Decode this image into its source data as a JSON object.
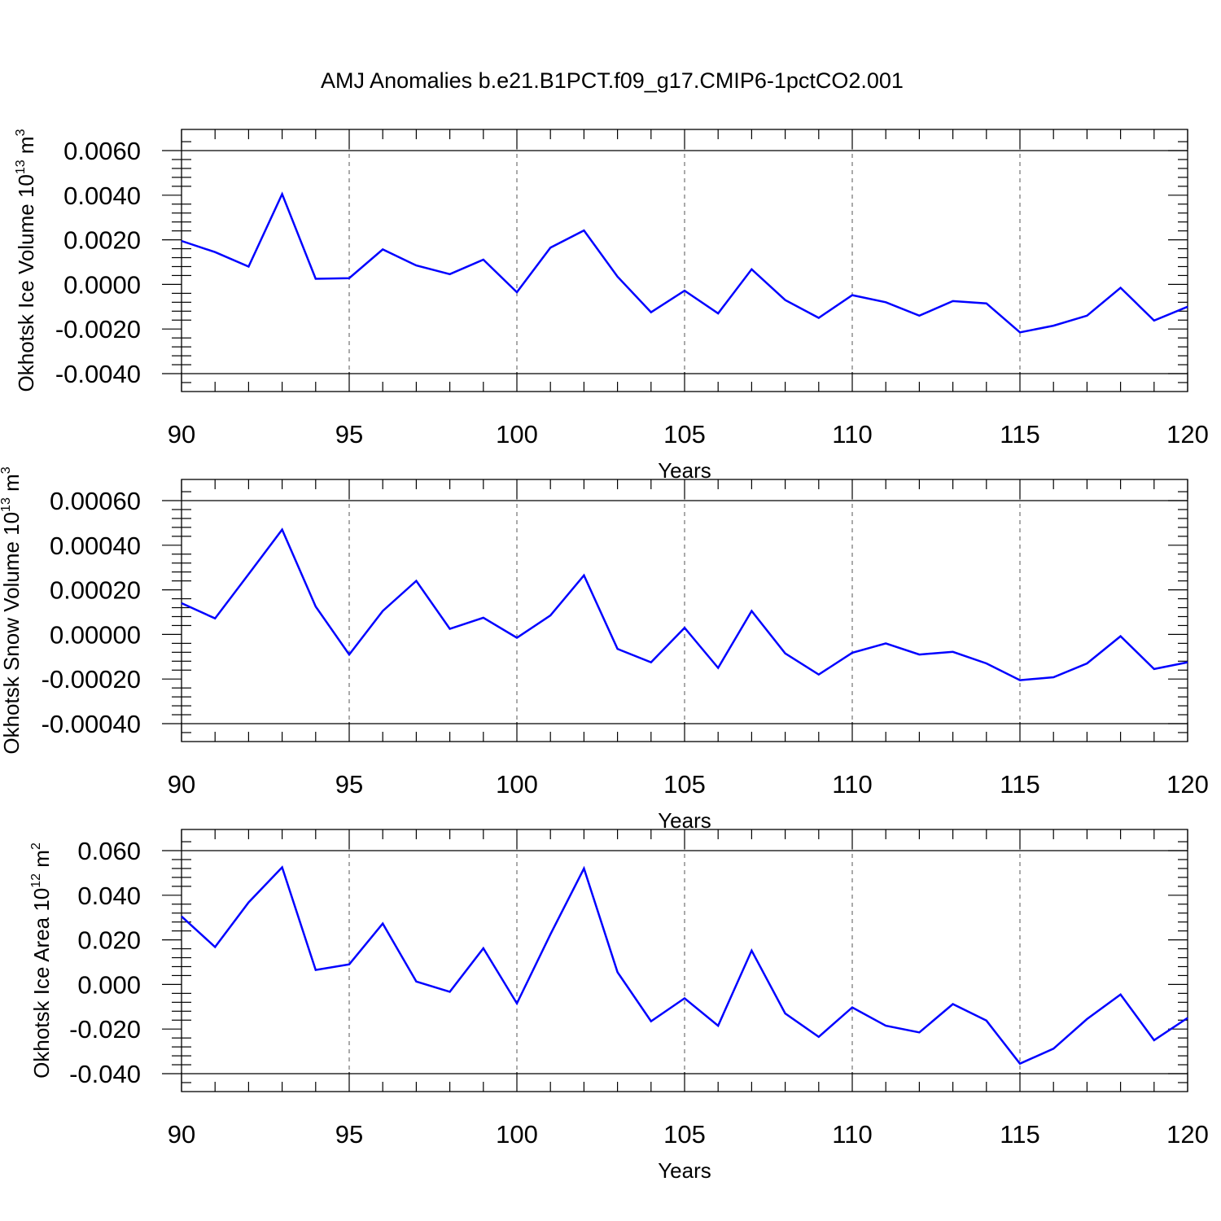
{
  "title": "AMJ Anomalies b.e21.B1PCT.f09_g17.CMIP6-1pctCO2.001",
  "line_color": "#0000ff",
  "chart_data": [
    {
      "type": "line",
      "title": "AMJ Anomalies b.e21.B1PCT.f09_g17.CMIP6-1pctCO2.001",
      "xlabel": "Years",
      "ylabel": "Okhotsk Ice Volume 10",
      "ylabel_exp": "13",
      "ylabel_unit": " m",
      "ylabel_unit_exp": "3",
      "xlim": [
        90,
        120
      ],
      "ylim": [
        -0.004,
        0.006
      ],
      "xticks": [
        "90",
        "95",
        "100",
        "105",
        "110",
        "115",
        "120"
      ],
      "yticks": [
        "-0.0040",
        "-0.0020",
        "0.0000",
        "0.0020",
        "0.0040",
        "0.0060"
      ],
      "grid": "vertical dashed at major x ticks",
      "x": [
        90,
        91,
        92,
        93,
        94,
        95,
        96,
        97,
        98,
        99,
        100,
        101,
        102,
        103,
        104,
        105,
        106,
        107,
        108,
        109,
        110,
        111,
        112,
        113,
        114,
        115,
        116,
        117,
        118,
        119,
        120
      ],
      "values": [
        0.00195,
        0.00145,
        0.0008,
        0.00405,
        0.00025,
        0.00028,
        0.00157,
        0.00085,
        0.00046,
        0.00111,
        -0.00035,
        0.00165,
        0.00242,
        0.00035,
        -0.00125,
        -0.00028,
        -0.0013,
        0.00068,
        -0.0007,
        -0.0015,
        -0.00048,
        -0.0008,
        -0.0014,
        -0.00075,
        -0.00085,
        -0.00215,
        -0.00185,
        -0.0014,
        -0.00015,
        -0.00162,
        -0.001
      ]
    },
    {
      "type": "line",
      "xlabel": "Years",
      "ylabel": "Okhotsk Snow Volume 10",
      "ylabel_exp": "13",
      "ylabel_unit": " m",
      "ylabel_unit_exp": "3",
      "xlim": [
        90,
        120
      ],
      "ylim": [
        -0.0004,
        0.0006
      ],
      "xticks": [
        "90",
        "95",
        "100",
        "105",
        "110",
        "115",
        "120"
      ],
      "yticks": [
        "-0.00040",
        "-0.00020",
        "0.00000",
        "0.00020",
        "0.00040",
        "0.00060"
      ],
      "grid": "vertical dashed at major x ticks",
      "x": [
        90,
        91,
        92,
        93,
        94,
        95,
        96,
        97,
        98,
        99,
        100,
        101,
        102,
        103,
        104,
        105,
        106,
        107,
        108,
        109,
        110,
        111,
        112,
        113,
        114,
        115,
        116,
        117,
        118,
        119,
        120
      ],
      "values": [
        0.00014,
        7.2e-05,
        0.00027,
        0.00047,
        0.000125,
        -9e-05,
        0.000105,
        0.00024,
        2.5e-05,
        7.5e-05,
        -1.5e-05,
        8.5e-05,
        0.000265,
        -6.5e-05,
        -0.000125,
        3e-05,
        -0.00015,
        0.000105,
        -8.5e-05,
        -0.00018,
        -8.2e-05,
        -4e-05,
        -9e-05,
        -7.8e-05,
        -0.00013,
        -0.000205,
        -0.000192,
        -0.00013,
        -8e-06,
        -0.000155,
        -0.000125
      ]
    },
    {
      "type": "line",
      "xlabel": "Years",
      "ylabel": "Okhotsk Ice Area 10",
      "ylabel_exp": "12",
      "ylabel_unit": " m",
      "ylabel_unit_exp": "2",
      "xlim": [
        90,
        120
      ],
      "ylim": [
        -0.04,
        0.06
      ],
      "xticks": [
        "90",
        "95",
        "100",
        "105",
        "110",
        "115",
        "120"
      ],
      "yticks": [
        "-0.040",
        "-0.020",
        "0.000",
        "0.020",
        "0.040",
        "0.060"
      ],
      "grid": "vertical dashed at major x ticks",
      "x": [
        90,
        91,
        92,
        93,
        94,
        95,
        96,
        97,
        98,
        99,
        100,
        101,
        102,
        103,
        104,
        105,
        106,
        107,
        108,
        109,
        110,
        111,
        112,
        113,
        114,
        115,
        116,
        117,
        118,
        119,
        120
      ],
      "values": [
        0.0305,
        0.0168,
        0.0368,
        0.0525,
        0.0065,
        0.009,
        0.0273,
        0.0013,
        -0.0033,
        0.0162,
        -0.0085,
        0.0225,
        0.052,
        0.0055,
        -0.0165,
        -0.0062,
        -0.0185,
        0.0152,
        -0.013,
        -0.0235,
        -0.0103,
        -0.0185,
        -0.0215,
        -0.0088,
        -0.0162,
        -0.0355,
        -0.0288,
        -0.0155,
        -0.0045,
        -0.025,
        -0.015
      ]
    }
  ]
}
